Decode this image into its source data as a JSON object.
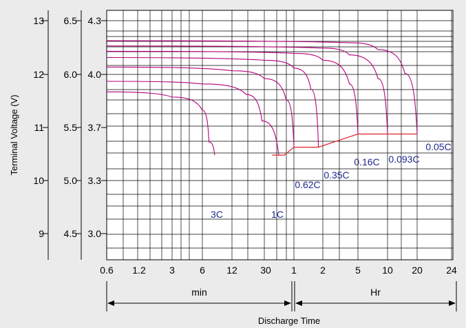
{
  "chart_data": {
    "type": "line",
    "title": "",
    "ylabel": "Terminal Voltage  (V)",
    "xlabel": "Discharge Time",
    "x_tick_labels": [
      "0.6",
      "1.2",
      "3",
      "6",
      "12",
      "30",
      "1",
      "2",
      "5",
      "10",
      "20",
      "24"
    ],
    "x_unit_groups": [
      {
        "label": "min",
        "from": "0.6",
        "to": "1"
      },
      {
        "label": "Hr",
        "from": "1",
        "to": "24"
      }
    ],
    "y_axes": [
      {
        "id": "12V",
        "ticks": [
          9,
          10,
          11,
          12,
          13
        ]
      },
      {
        "id": "6V",
        "ticks": [
          4.5,
          5.0,
          5.5,
          6.0,
          6.5
        ]
      },
      {
        "id": "cell",
        "ticks": [
          3.0,
          3.3,
          3.7,
          4.0,
          4.3
        ]
      }
    ],
    "cutoff_voltage_line": [
      {
        "x": "0.6 h",
        "y": 10.45
      },
      {
        "x": "0.8 h",
        "y": 10.45
      },
      {
        "x": "1 h",
        "y": 10.6
      },
      {
        "x": "1.8 h",
        "y": 10.6
      },
      {
        "x": "5 h",
        "y": 10.85
      },
      {
        "x": "20 h",
        "y": 10.85
      }
    ],
    "series": [
      {
        "label": "3C",
        "points": [
          [
            0.6,
            11.65
          ],
          [
            3,
            11.55
          ],
          [
            6,
            11.3
          ],
          [
            7,
            10.7
          ],
          [
            8,
            10.45
          ]
        ]
      },
      {
        "label": "1C",
        "points": [
          [
            0.6,
            11.85
          ],
          [
            6,
            11.8
          ],
          [
            18,
            11.6
          ],
          [
            28,
            11.1
          ],
          [
            42,
            10.45
          ]
        ]
      },
      {
        "label": "0.62C",
        "points": [
          [
            0.6,
            12.12
          ],
          [
            12,
            12.05
          ],
          [
            30,
            11.9
          ],
          [
            50,
            11.5
          ],
          [
            60,
            10.6
          ]
        ]
      },
      {
        "label": "0.35C",
        "points": [
          [
            0.6,
            12.3
          ],
          [
            30,
            12.25
          ],
          [
            60,
            12.1
          ],
          [
            90,
            11.7
          ],
          [
            108,
            10.6
          ]
        ]
      },
      {
        "label": "0.16C",
        "points": [
          [
            0.6,
            12.42
          ],
          [
            60,
            12.38
          ],
          [
            120,
            12.25
          ],
          [
            240,
            11.8
          ],
          [
            300,
            10.85
          ]
        ]
      },
      {
        "label": "0.093C",
        "points": [
          [
            0.6,
            12.52
          ],
          [
            120,
            12.48
          ],
          [
            240,
            12.35
          ],
          [
            480,
            11.9
          ],
          [
            600,
            10.85
          ]
        ]
      },
      {
        "label": "0.05C",
        "points": [
          [
            0.6,
            12.62
          ],
          [
            240,
            12.58
          ],
          [
            480,
            12.45
          ],
          [
            900,
            12.0
          ],
          [
            1200,
            10.85
          ]
        ]
      }
    ],
    "colors": {
      "curve": "#b5007a",
      "cutoff": "#e0202a",
      "label": "#1e2a8c",
      "grid": "#000000"
    }
  }
}
